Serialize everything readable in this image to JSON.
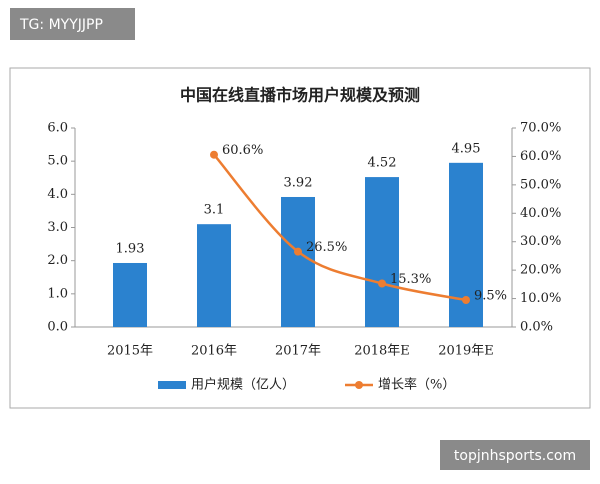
{
  "overlay": {
    "top_left": "TG: MYYJJPP",
    "bottom_right": "topjnhsports.com"
  },
  "chart_data": {
    "type": "bar",
    "title": "中国在线直播市场用户规模及预测",
    "categories": [
      "2015年",
      "2016年",
      "2017年",
      "2018年E",
      "2019年E"
    ],
    "series": [
      {
        "name": "用户规模（亿人）",
        "color": "#2b82cf",
        "values": [
          1.93,
          3.1,
          3.92,
          4.52,
          4.95
        ]
      },
      {
        "name": "增长率（%）",
        "color": "#ed7d31",
        "axis": "y2",
        "type": "line",
        "values": [
          null,
          60.6,
          26.5,
          15.3,
          9.5
        ],
        "value_labels": [
          null,
          "60.6%",
          "26.5%",
          "15.3%",
          "9.5%"
        ]
      }
    ],
    "ylim": [
      0,
      6
    ],
    "yticks": [
      {
        "value": 0,
        "label": "0.0"
      },
      {
        "value": 1,
        "label": "1.0"
      },
      {
        "value": 2,
        "label": "2.0"
      },
      {
        "value": 3,
        "label": "3.0"
      },
      {
        "value": 4,
        "label": "4.0"
      },
      {
        "value": 5,
        "label": "5.0"
      },
      {
        "value": 6,
        "label": "6.0"
      }
    ],
    "y2lim": [
      0,
      70
    ],
    "y2ticks": [
      {
        "value": 0,
        "label": "0.0%"
      },
      {
        "value": 10,
        "label": "10.0%"
      },
      {
        "value": 20,
        "label": "20.0%"
      },
      {
        "value": 30,
        "label": "30.0%"
      },
      {
        "value": 40,
        "label": "40.0%"
      },
      {
        "value": 50,
        "label": "50.0%"
      },
      {
        "value": 60,
        "label": "60.0%"
      },
      {
        "value": 70,
        "label": "70.0%"
      }
    ],
    "legend": "bottom"
  }
}
